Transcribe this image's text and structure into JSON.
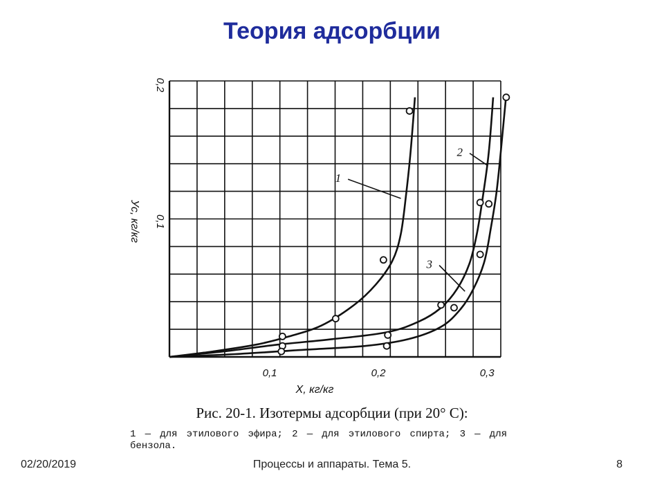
{
  "slide": {
    "title": "Теория адсорбции",
    "caption": "Рис. 20-1. Изотермы адсорбции (при 20° C):",
    "legend_note": "1 — для этилового эфира; 2 — для этилового спирта; 3 — для бензола."
  },
  "footer": {
    "date": "02/20/2019",
    "center": "Процессы и аппараты. Тема 5.",
    "page": "8"
  },
  "chart_data": {
    "type": "line",
    "title": "",
    "xlabel": "X, кг/кг",
    "ylabel": "Ус, кг/кг",
    "xlim": [
      0,
      0.3
    ],
    "ylim": [
      0,
      0.2
    ],
    "grid": true,
    "x_ticks": [
      {
        "value": 0.1,
        "label": "0,1"
      },
      {
        "value": 0.2,
        "label": "0,2"
      },
      {
        "value": 0.3,
        "label": "0,3"
      }
    ],
    "y_ticks": [
      {
        "value": 0.1,
        "label": "0,1"
      },
      {
        "value": 0.2,
        "label": "0,2"
      }
    ],
    "line_color": "#111111",
    "series": [
      {
        "name": "1",
        "curve": [
          [
            0,
            0
          ],
          [
            0.04,
            0.004
          ],
          [
            0.08,
            0.009
          ],
          [
            0.11,
            0.015
          ],
          [
            0.14,
            0.023
          ],
          [
            0.17,
            0.038
          ],
          [
            0.19,
            0.053
          ],
          [
            0.205,
            0.07
          ],
          [
            0.213,
            0.09
          ],
          [
            0.218,
            0.12
          ],
          [
            0.222,
            0.15
          ],
          [
            0.226,
            0.19
          ]
        ],
        "points": [
          [
            0.104,
            0.008
          ],
          [
            0.104,
            0.015
          ],
          [
            0.153,
            0.028
          ],
          [
            0.197,
            0.071
          ],
          [
            0.221,
            0.18
          ]
        ]
      },
      {
        "name": "2",
        "curve": [
          [
            0,
            0
          ],
          [
            0.05,
            0.004
          ],
          [
            0.1,
            0.009
          ],
          [
            0.15,
            0.013
          ],
          [
            0.2,
            0.018
          ],
          [
            0.23,
            0.026
          ],
          [
            0.25,
            0.036
          ],
          [
            0.265,
            0.05
          ],
          [
            0.276,
            0.068
          ],
          [
            0.283,
            0.09
          ],
          [
            0.289,
            0.12
          ],
          [
            0.294,
            0.15
          ],
          [
            0.298,
            0.19
          ]
        ],
        "points": [
          [
            0.201,
            0.016
          ],
          [
            0.25,
            0.038
          ],
          [
            0.286,
            0.113
          ]
        ]
      },
      {
        "name": "3",
        "curve": [
          [
            0,
            0
          ],
          [
            0.06,
            0.002
          ],
          [
            0.12,
            0.005
          ],
          [
            0.18,
            0.008
          ],
          [
            0.22,
            0.013
          ],
          [
            0.25,
            0.022
          ],
          [
            0.268,
            0.035
          ],
          [
            0.28,
            0.05
          ],
          [
            0.29,
            0.07
          ],
          [
            0.296,
            0.095
          ],
          [
            0.301,
            0.12
          ],
          [
            0.305,
            0.15
          ],
          [
            0.308,
            0.175
          ],
          [
            0.31,
            0.192
          ]
        ],
        "points": [
          [
            0.103,
            0.004
          ],
          [
            0.2,
            0.008
          ],
          [
            0.262,
            0.036
          ],
          [
            0.286,
            0.075
          ],
          [
            0.294,
            0.112
          ],
          [
            0.31,
            0.19
          ]
        ]
      }
    ],
    "annotations": [
      {
        "text": "1",
        "at": [
          0.158,
          0.128
        ],
        "pointer_to": [
          0.213,
          0.116
        ]
      },
      {
        "text": "2",
        "at": [
          0.27,
          0.147
        ],
        "pointer_to": [
          0.293,
          0.14
        ]
      },
      {
        "text": "3",
        "at": [
          0.242,
          0.065
        ],
        "pointer_to": [
          0.272,
          0.048
        ]
      }
    ]
  }
}
